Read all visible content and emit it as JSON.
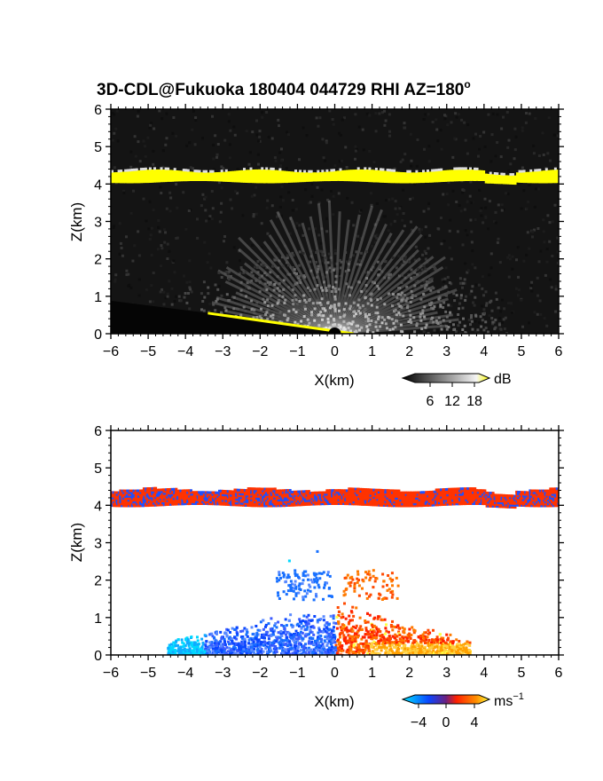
{
  "chart_data": [
    {
      "type": "heatmap",
      "title": "3D-CDL@Fukuoka 180404 044729 RHI AZ=180",
      "title_superscript": "o",
      "xlabel": "X(km)",
      "ylabel": "Z(km)",
      "xlim": [
        -6,
        6
      ],
      "ylim": [
        0,
        6
      ],
      "xticks": [
        "-6",
        "-5",
        "-4",
        "-3",
        "-2",
        "-1",
        "0",
        "1",
        "2",
        "3",
        "4",
        "5",
        "6"
      ],
      "yticks": [
        "0",
        "1",
        "2",
        "3",
        "4",
        "5",
        "6"
      ],
      "background_color": "#141414",
      "layer": {
        "z_bottom": 4.05,
        "z_top": 4.35,
        "x_dip": 4.4,
        "color": "#ffff00"
      },
      "ground_edge": {
        "from": [
          -3.4,
          0.55
        ],
        "to": [
          0.5,
          0.0
        ],
        "color": "#ffff00"
      },
      "colorbar": {
        "unit": "dB",
        "ticks": [
          "6",
          "12",
          "18"
        ],
        "range": [
          0,
          20
        ],
        "colors": [
          "#000000",
          "#ffffff",
          "#ffff00"
        ]
      }
    },
    {
      "type": "heatmap",
      "xlabel": "X(km)",
      "ylabel": "Z(km)",
      "xlim": [
        -6,
        6
      ],
      "ylim": [
        0,
        6
      ],
      "xticks": [
        "-6",
        "-5",
        "-4",
        "-3",
        "-2",
        "-1",
        "0",
        "1",
        "2",
        "3",
        "4",
        "5",
        "6"
      ],
      "yticks": [
        "0",
        "1",
        "2",
        "3",
        "4",
        "5",
        "6"
      ],
      "background_color": "#ffffff",
      "layer": {
        "z_bottom": 4.05,
        "z_top": 4.45,
        "x_dip": 4.4,
        "colors": [
          "#ff3300",
          "#1e50ff"
        ]
      },
      "echo_region": {
        "approaching_x": [
          -4.5,
          0.0
        ],
        "receding_x": [
          0.0,
          3.6
        ],
        "max_z": 2.8
      },
      "colorbar": {
        "unit": "ms",
        "unit_exponent": "−1",
        "ticks": [
          "−4",
          "0",
          "4"
        ],
        "range": [
          -6,
          6
        ],
        "colors": [
          "#00ffff",
          "#0050ff",
          "#ff0000",
          "#ffff00"
        ]
      }
    }
  ]
}
